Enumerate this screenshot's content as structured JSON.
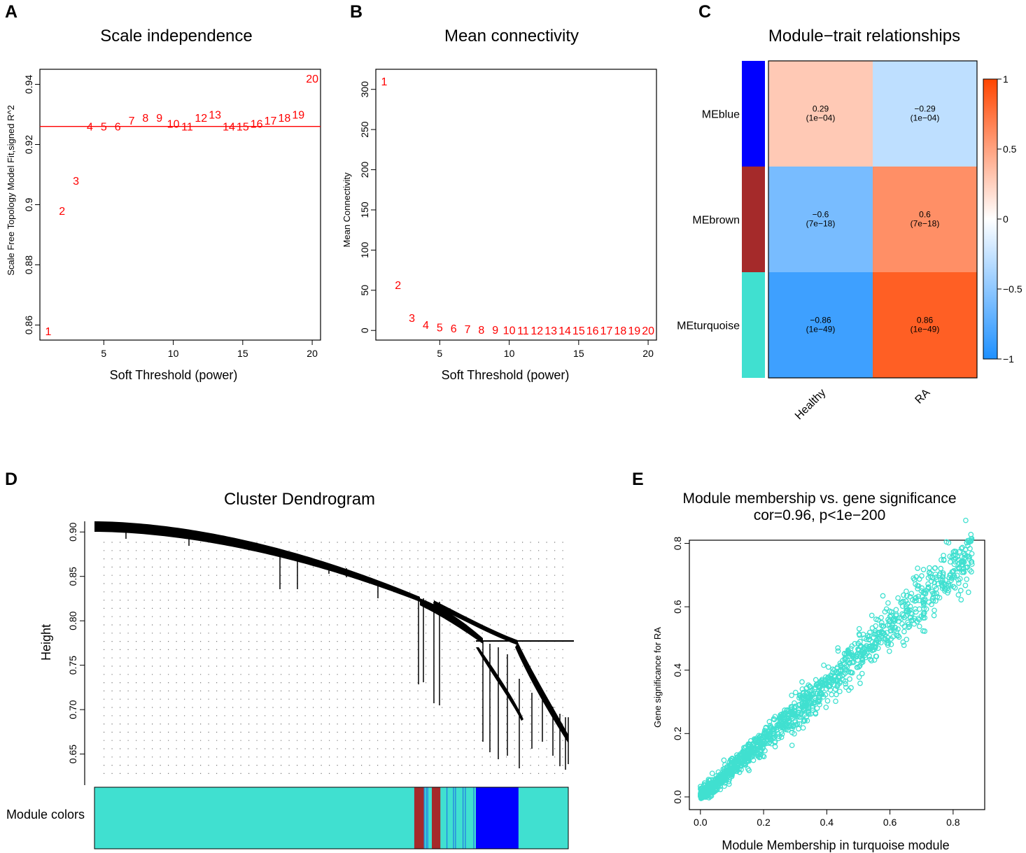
{
  "colors": {
    "red": "#ff0000",
    "blue": "#0000ff",
    "brown": "#a52a2a",
    "turquoise": "#40e0d0",
    "heat_neg": "#1e90ff",
    "heat_mid": "#ffffff",
    "heat_pos": "#ff4500"
  },
  "chart_data": [
    {
      "panel": "A",
      "type": "scatter",
      "title": "Scale independence",
      "xlabel": "Soft Threshold (power)",
      "ylabel": "Scale Free Topology Model Fit,signed R^2",
      "xlim": [
        0.4,
        20.6
      ],
      "ylim": [
        0.855,
        0.945
      ],
      "xticks": [
        5,
        10,
        15,
        20
      ],
      "yticks": [
        0.86,
        0.88,
        0.9,
        0.92,
        0.94
      ],
      "hline": 0.926,
      "point_labels": [
        "1",
        "2",
        "3",
        "4",
        "5",
        "6",
        "7",
        "8",
        "9",
        "10",
        "11",
        "12",
        "13",
        "14",
        "15",
        "16",
        "17",
        "18",
        "19",
        "20"
      ],
      "x": [
        1,
        2,
        3,
        4,
        5,
        6,
        7,
        8,
        9,
        10,
        11,
        12,
        13,
        14,
        15,
        16,
        17,
        18,
        19,
        20
      ],
      "y": [
        0.858,
        0.898,
        0.908,
        0.926,
        0.926,
        0.926,
        0.928,
        0.929,
        0.929,
        0.927,
        0.926,
        0.929,
        0.93,
        0.926,
        0.926,
        0.927,
        0.928,
        0.929,
        0.93,
        0.942
      ]
    },
    {
      "panel": "B",
      "type": "scatter",
      "title": "Mean connectivity",
      "xlabel": "Soft Threshold (power)",
      "ylabel": "Mean Connectivity",
      "xlim": [
        0.4,
        20.6
      ],
      "ylim": [
        -12,
        325
      ],
      "xticks": [
        5,
        10,
        15,
        20
      ],
      "yticks": [
        0,
        50,
        100,
        150,
        200,
        250,
        300
      ],
      "point_labels": [
        "1",
        "2",
        "3",
        "4",
        "5",
        "6",
        "7",
        "8",
        "9",
        "10",
        "11",
        "12",
        "13",
        "14",
        "15",
        "16",
        "17",
        "18",
        "19",
        "20"
      ],
      "x": [
        1,
        2,
        3,
        4,
        5,
        6,
        7,
        8,
        9,
        10,
        11,
        12,
        13,
        14,
        15,
        16,
        17,
        18,
        19,
        20
      ],
      "y": [
        310,
        57,
        16,
        7,
        4,
        3,
        2,
        1,
        1,
        0.5,
        0.4,
        0.3,
        0.2,
        0.2,
        0.1,
        0.1,
        0.1,
        0.1,
        0.1,
        0.1
      ]
    },
    {
      "panel": "C",
      "type": "heatmap",
      "title": "Module−trait relationships",
      "rows": [
        "MEblue",
        "MEbrown",
        "MEturquoise"
      ],
      "row_colors": [
        "#0000ff",
        "#a52a2a",
        "#40e0d0"
      ],
      "columns": [
        "Healthy",
        "RA"
      ],
      "values": [
        [
          0.29,
          -0.29
        ],
        [
          -0.6,
          0.6
        ],
        [
          -0.86,
          0.86
        ]
      ],
      "cell_labels": [
        [
          "0.29",
          "−0.29"
        ],
        [
          "−0.6",
          "0.6"
        ],
        [
          "−0.86",
          "0.86"
        ]
      ],
      "pvalues": [
        [
          "(1e−04)",
          "(1e−04)"
        ],
        [
          "(7e−18)",
          "(7e−18)"
        ],
        [
          "(1e−49)",
          "(1e−49)"
        ]
      ],
      "colorbar_ticks": [
        "1",
        "0.5",
        "0",
        "−0.5",
        "−1"
      ],
      "colorbar_values": [
        1,
        0.5,
        0,
        -0.5,
        -1
      ]
    },
    {
      "panel": "D",
      "type": "dendrogram",
      "title": "Cluster Dendrogram",
      "ylabel": "Height",
      "ylim": [
        0.615,
        0.912
      ],
      "yticks": [
        "0.65",
        "0.70",
        "0.75",
        "0.80",
        "0.85",
        "0.90"
      ],
      "ytick_values": [
        0.65,
        0.7,
        0.75,
        0.8,
        0.85,
        0.9
      ],
      "colorbar_label": "Module colors",
      "module_segments": [
        {
          "module": "turquoise",
          "start": 0.0,
          "end": 0.673
        },
        {
          "module": "brown",
          "start": 0.675,
          "end": 0.695
        },
        {
          "module": "brown",
          "start": 0.712,
          "end": 0.73
        },
        {
          "module": "blue",
          "start": 0.805,
          "end": 0.895
        },
        {
          "module": "turquoise",
          "start": 0.895,
          "end": 1.0
        }
      ]
    },
    {
      "panel": "E",
      "type": "scatter",
      "title": "Module membership vs. gene significance",
      "subtitle": "cor=0.96, p<1e−200",
      "xlabel": "Module Membership in turquoise module",
      "ylabel": "Gene significance for RA",
      "xlim": [
        -0.035,
        0.9
      ],
      "ylim": [
        -0.04,
        0.81
      ],
      "xticks": [
        "0.0",
        "0.2",
        "0.4",
        "0.6",
        "0.8"
      ],
      "xtick_values": [
        0,
        0.2,
        0.4,
        0.6,
        0.8
      ],
      "yticks": [
        "0.0",
        "0.2",
        "0.4",
        "0.6",
        "0.8"
      ],
      "ytick_values": [
        0,
        0.2,
        0.4,
        0.6,
        0.8
      ],
      "point_color": "#40e0d0",
      "approx_points": 1400,
      "trend": {
        "slope": 0.89,
        "intercept": 0.0
      }
    }
  ]
}
